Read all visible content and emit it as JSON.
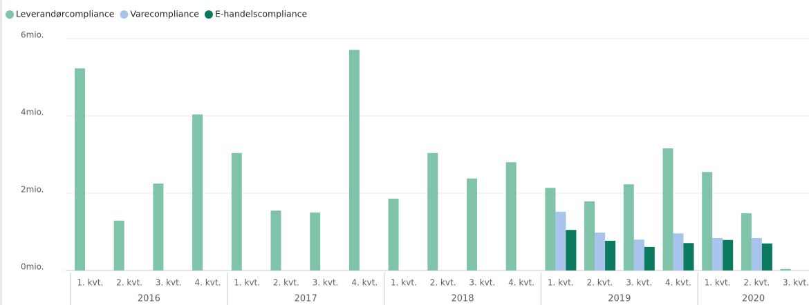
{
  "chart_data": {
    "type": "bar",
    "groups": [
      {
        "label": "2016",
        "categories": [
          "1. kvt.",
          "2. kvt.",
          "3. kvt.",
          "4. kvt."
        ]
      },
      {
        "label": "2017",
        "categories": [
          "1. kvt.",
          "2. kvt.",
          "3. kvt.",
          "4. kvt."
        ]
      },
      {
        "label": "2018",
        "categories": [
          "1. kvt.",
          "2. kvt.",
          "3. kvt.",
          "4. kvt."
        ]
      },
      {
        "label": "2019",
        "categories": [
          "1. kvt.",
          "2. kvt.",
          "3. kvt.",
          "4. kvt."
        ]
      },
      {
        "label": "2020",
        "categories": [
          "1. kvt.",
          "2. kvt.",
          "3. kvt."
        ]
      }
    ],
    "series": [
      {
        "name": "Leverandørcompliance",
        "color": "#7fc4a8",
        "values": [
          5.23,
          1.29,
          2.25,
          4.04,
          3.04,
          1.55,
          1.5,
          5.71,
          1.86,
          3.04,
          2.38,
          2.8,
          2.14,
          1.79,
          2.23,
          3.16,
          2.55,
          1.48,
          0.04
        ]
      },
      {
        "name": "Varecompliance",
        "color": "#a9c4ec",
        "values": [
          null,
          null,
          null,
          null,
          null,
          null,
          null,
          null,
          null,
          null,
          null,
          null,
          1.52,
          0.98,
          0.8,
          0.96,
          0.84,
          0.84,
          null
        ]
      },
      {
        "name": "E-handelscompliance",
        "color": "#0b7a5e",
        "values": [
          null,
          null,
          null,
          null,
          null,
          null,
          null,
          null,
          null,
          null,
          null,
          null,
          1.05,
          0.77,
          0.61,
          0.71,
          0.79,
          0.7,
          null
        ]
      }
    ],
    "ylim": [
      0,
      6
    ],
    "yticks": [
      {
        "value": 0,
        "label": "0mio."
      },
      {
        "value": 2,
        "label": "2mio."
      },
      {
        "value": 4,
        "label": "4mio."
      },
      {
        "value": 6,
        "label": "6mio."
      }
    ],
    "grid": true
  }
}
